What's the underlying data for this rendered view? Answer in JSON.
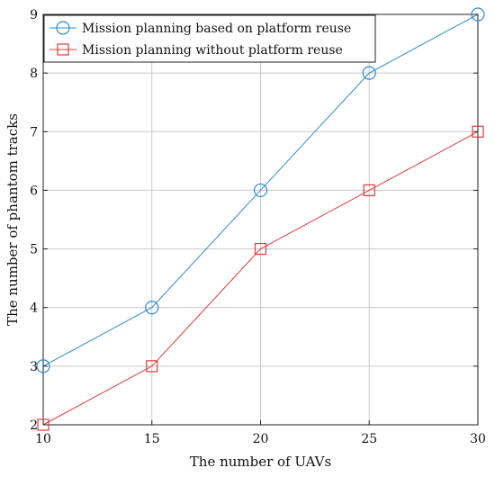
{
  "chart_data": {
    "type": "line",
    "title": "",
    "xlabel": "The number of UAVs",
    "ylabel": "The number of phantom tracks",
    "x": [
      10,
      15,
      20,
      25,
      30
    ],
    "xlim": [
      10,
      30
    ],
    "ylim": [
      2,
      9
    ],
    "xticks": [
      10,
      15,
      20,
      25,
      30
    ],
    "yticks": [
      2,
      3,
      4,
      5,
      6,
      7,
      8,
      9
    ],
    "grid": true,
    "legend": {
      "placement": "top-left"
    },
    "series": [
      {
        "name": "Mission planning based on platform reuse",
        "values": [
          3,
          4,
          6,
          8,
          9
        ],
        "color": "#2b8bd1",
        "marker": "circle"
      },
      {
        "name": "Mission planning without platform reuse",
        "values": [
          2,
          3,
          5,
          6,
          7
        ],
        "color": "#e03a3a",
        "marker": "square"
      }
    ]
  }
}
